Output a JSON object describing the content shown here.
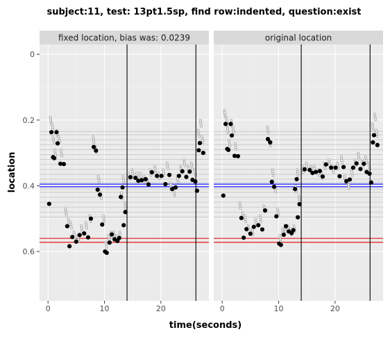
{
  "chart_data": [
    {
      "type": "scatter",
      "title": "subject:11, test: 13pt1.5sp, find row:indented, question:exist",
      "xlabel": "time(seconds)",
      "ylabel": "location",
      "facet_label": "fixed location, bias was: 0.0239",
      "xlim": [
        -1.5,
        28.5
      ],
      "ylim": [
        0.75,
        -0.03
      ],
      "y_reversed": true,
      "x_ticks": [
        0,
        10,
        20
      ],
      "y_ticks": [
        0,
        0.2,
        0.4,
        0.6
      ],
      "y_tick_labels": [
        "0",
        "0.2",
        "0.4",
        "0.6"
      ],
      "reference_lines": {
        "blue": [
          0.395,
          0.403
        ],
        "red": [
          0.56,
          0.572
        ],
        "vertical": [
          14.0,
          26.2
        ],
        "gray": [
          0.235,
          0.245,
          0.26,
          0.275,
          0.29,
          0.305,
          0.32,
          0.335,
          0.35,
          0.365,
          0.38,
          0.39,
          0.41,
          0.42,
          0.435,
          0.45,
          0.465,
          0.48,
          0.495
        ]
      },
      "points": [
        [
          0.2,
          0.455
        ],
        [
          0.6,
          0.237
        ],
        [
          0.9,
          0.313
        ],
        [
          1.1,
          0.316
        ],
        [
          1.5,
          0.237
        ],
        [
          1.7,
          0.271
        ],
        [
          2.2,
          0.333
        ],
        [
          2.8,
          0.334
        ],
        [
          3.4,
          0.523
        ],
        [
          3.8,
          0.584
        ],
        [
          4.3,
          0.556
        ],
        [
          5.0,
          0.57
        ],
        [
          5.6,
          0.55
        ],
        [
          6.4,
          0.545
        ],
        [
          7.1,
          0.557
        ],
        [
          7.6,
          0.5
        ],
        [
          8.1,
          0.282
        ],
        [
          8.5,
          0.293
        ],
        [
          8.8,
          0.412
        ],
        [
          9.2,
          0.427
        ],
        [
          9.6,
          0.518
        ],
        [
          10.1,
          0.6
        ],
        [
          10.4,
          0.604
        ],
        [
          10.9,
          0.573
        ],
        [
          11.3,
          0.548
        ],
        [
          11.8,
          0.563
        ],
        [
          12.3,
          0.568
        ],
        [
          12.6,
          0.559
        ],
        [
          12.9,
          0.434
        ],
        [
          13.2,
          0.405
        ],
        [
          13.4,
          0.52
        ],
        [
          13.7,
          0.48
        ],
        [
          14.6,
          0.374
        ],
        [
          15.5,
          0.376
        ],
        [
          16.0,
          0.385
        ],
        [
          16.6,
          0.383
        ],
        [
          17.3,
          0.38
        ],
        [
          17.8,
          0.396
        ],
        [
          18.4,
          0.359
        ],
        [
          19.3,
          0.37
        ],
        [
          20.1,
          0.37
        ],
        [
          20.8,
          0.395
        ],
        [
          21.5,
          0.367
        ],
        [
          22.0,
          0.41
        ],
        [
          22.6,
          0.405
        ],
        [
          23.2,
          0.37
        ],
        [
          23.8,
          0.356
        ],
        [
          24.5,
          0.373
        ],
        [
          25.1,
          0.357
        ],
        [
          25.6,
          0.382
        ],
        [
          26.1,
          0.387
        ],
        [
          26.4,
          0.415
        ],
        [
          26.7,
          0.292
        ],
        [
          26.9,
          0.27
        ],
        [
          27.5,
          0.3
        ]
      ],
      "gaze_trail": [
        [
          0.4,
          0.2
        ],
        [
          0.7,
          0.22
        ],
        [
          0.9,
          0.26
        ],
        [
          1.2,
          0.3
        ],
        [
          1.6,
          0.24
        ],
        [
          1.9,
          0.26
        ],
        [
          2.3,
          0.3
        ],
        [
          3.1,
          0.48
        ],
        [
          3.6,
          0.51
        ],
        [
          4.0,
          0.52
        ],
        [
          4.6,
          0.55
        ],
        [
          5.3,
          0.56
        ],
        [
          5.9,
          0.53
        ],
        [
          6.7,
          0.52
        ],
        [
          7.4,
          0.5
        ],
        [
          8.0,
          0.26
        ],
        [
          8.4,
          0.29
        ],
        [
          8.9,
          0.38
        ],
        [
          9.3,
          0.43
        ],
        [
          9.8,
          0.5
        ],
        [
          10.2,
          0.58
        ],
        [
          10.7,
          0.56
        ],
        [
          11.1,
          0.55
        ],
        [
          11.6,
          0.55
        ],
        [
          12.1,
          0.56
        ],
        [
          12.7,
          0.55
        ],
        [
          13.0,
          0.43
        ],
        [
          13.3,
          0.38
        ],
        [
          13.6,
          0.46
        ],
        [
          14.2,
          0.37
        ],
        [
          14.9,
          0.36
        ],
        [
          15.7,
          0.37
        ],
        [
          16.3,
          0.37
        ],
        [
          17.0,
          0.38
        ],
        [
          17.6,
          0.39
        ],
        [
          18.1,
          0.36
        ],
        [
          18.9,
          0.35
        ],
        [
          19.6,
          0.37
        ],
        [
          20.4,
          0.36
        ],
        [
          21.1,
          0.34
        ],
        [
          21.7,
          0.4
        ],
        [
          22.3,
          0.42
        ],
        [
          22.9,
          0.38
        ],
        [
          23.5,
          0.35
        ],
        [
          24.1,
          0.33
        ],
        [
          24.8,
          0.35
        ],
        [
          25.4,
          0.34
        ],
        [
          26.0,
          0.36
        ],
        [
          26.6,
          0.24
        ],
        [
          27.0,
          0.21
        ],
        [
          27.3,
          0.26
        ]
      ]
    },
    {
      "type": "scatter",
      "facet_label": "original location",
      "xlabel": "time(seconds)",
      "xlim": [
        -1.5,
        28.5
      ],
      "ylim": [
        0.75,
        -0.03
      ],
      "y_reversed": true,
      "x_ticks": [
        0,
        10,
        20
      ],
      "reference_lines": {
        "blue": [
          0.395,
          0.403
        ],
        "red": [
          0.56,
          0.572
        ],
        "vertical": [
          14.0,
          26.2
        ],
        "gray": [
          0.235,
          0.245,
          0.26,
          0.275,
          0.29,
          0.305,
          0.32,
          0.335,
          0.35,
          0.365,
          0.38,
          0.39,
          0.41,
          0.42,
          0.435,
          0.45,
          0.465,
          0.48,
          0.495
        ]
      },
      "points": [
        [
          0.2,
          0.43
        ],
        [
          0.6,
          0.212
        ],
        [
          0.9,
          0.288
        ],
        [
          1.1,
          0.291
        ],
        [
          1.5,
          0.212
        ],
        [
          1.7,
          0.247
        ],
        [
          2.2,
          0.309
        ],
        [
          2.8,
          0.31
        ],
        [
          3.4,
          0.498
        ],
        [
          3.8,
          0.558
        ],
        [
          4.3,
          0.532
        ],
        [
          5.0,
          0.546
        ],
        [
          5.6,
          0.525
        ],
        [
          6.4,
          0.52
        ],
        [
          7.1,
          0.533
        ],
        [
          7.6,
          0.475
        ],
        [
          8.1,
          0.258
        ],
        [
          8.5,
          0.268
        ],
        [
          8.8,
          0.388
        ],
        [
          9.2,
          0.403
        ],
        [
          9.6,
          0.493
        ],
        [
          10.1,
          0.576
        ],
        [
          10.4,
          0.58
        ],
        [
          10.9,
          0.549
        ],
        [
          11.3,
          0.523
        ],
        [
          11.8,
          0.539
        ],
        [
          12.3,
          0.544
        ],
        [
          12.6,
          0.535
        ],
        [
          12.9,
          0.41
        ],
        [
          13.2,
          0.38
        ],
        [
          13.4,
          0.496
        ],
        [
          13.7,
          0.456
        ],
        [
          14.6,
          0.35
        ],
        [
          15.5,
          0.352
        ],
        [
          16.0,
          0.361
        ],
        [
          16.6,
          0.358
        ],
        [
          17.3,
          0.355
        ],
        [
          17.8,
          0.372
        ],
        [
          18.4,
          0.335
        ],
        [
          19.3,
          0.345
        ],
        [
          20.1,
          0.345
        ],
        [
          20.8,
          0.371
        ],
        [
          21.5,
          0.343
        ],
        [
          22.0,
          0.386
        ],
        [
          22.6,
          0.381
        ],
        [
          23.2,
          0.345
        ],
        [
          23.8,
          0.332
        ],
        [
          24.5,
          0.349
        ],
        [
          25.1,
          0.333
        ],
        [
          25.6,
          0.358
        ],
        [
          26.1,
          0.363
        ],
        [
          26.4,
          0.39
        ],
        [
          26.7,
          0.268
        ],
        [
          26.9,
          0.246
        ],
        [
          27.5,
          0.276
        ]
      ],
      "gaze_trail": [
        [
          0.4,
          0.18
        ],
        [
          0.7,
          0.2
        ],
        [
          0.9,
          0.23
        ],
        [
          1.2,
          0.27
        ],
        [
          1.6,
          0.21
        ],
        [
          1.9,
          0.23
        ],
        [
          2.3,
          0.28
        ],
        [
          3.1,
          0.46
        ],
        [
          3.6,
          0.49
        ],
        [
          4.0,
          0.5
        ],
        [
          4.6,
          0.53
        ],
        [
          5.3,
          0.54
        ],
        [
          5.9,
          0.51
        ],
        [
          6.7,
          0.5
        ],
        [
          7.4,
          0.47
        ],
        [
          8.0,
          0.23
        ],
        [
          8.4,
          0.27
        ],
        [
          8.9,
          0.36
        ],
        [
          9.3,
          0.41
        ],
        [
          9.8,
          0.48
        ],
        [
          10.2,
          0.56
        ],
        [
          10.7,
          0.54
        ],
        [
          11.1,
          0.53
        ],
        [
          11.6,
          0.53
        ],
        [
          12.1,
          0.54
        ],
        [
          12.7,
          0.53
        ],
        [
          13.0,
          0.41
        ],
        [
          13.3,
          0.36
        ],
        [
          13.6,
          0.44
        ],
        [
          14.2,
          0.35
        ],
        [
          14.9,
          0.34
        ],
        [
          15.7,
          0.35
        ],
        [
          16.3,
          0.35
        ],
        [
          17.0,
          0.36
        ],
        [
          17.6,
          0.37
        ],
        [
          18.1,
          0.34
        ],
        [
          18.9,
          0.33
        ],
        [
          19.6,
          0.35
        ],
        [
          20.4,
          0.34
        ],
        [
          21.1,
          0.32
        ],
        [
          21.7,
          0.38
        ],
        [
          22.3,
          0.4
        ],
        [
          22.9,
          0.36
        ],
        [
          23.5,
          0.33
        ],
        [
          24.1,
          0.31
        ],
        [
          24.8,
          0.33
        ],
        [
          25.4,
          0.32
        ],
        [
          26.0,
          0.34
        ],
        [
          26.6,
          0.22
        ],
        [
          27.0,
          0.19
        ],
        [
          27.3,
          0.24
        ]
      ]
    }
  ]
}
